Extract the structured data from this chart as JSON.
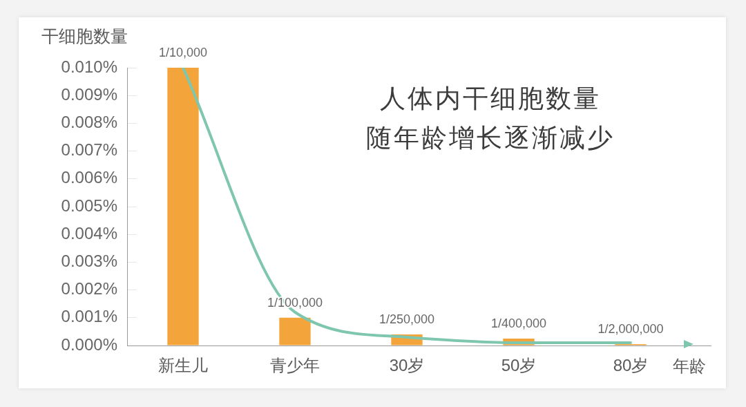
{
  "chart_data": {
    "type": "bar",
    "title": "人体内干细胞数量",
    "subtitle": "随年龄增长逐渐减少",
    "xlabel": "年龄",
    "ylabel": "干细胞数量",
    "categories": [
      "新生儿",
      "青少年",
      "30岁",
      "50岁",
      "80岁"
    ],
    "series": [
      {
        "color": "#f3a53c",
        "values": [
          0.01,
          0.001,
          0.0004,
          0.00025,
          5e-05
        ],
        "value_labels": [
          "1/10,000",
          "1/100,000",
          "1/250,000",
          "1/400,000",
          "1/2,000,000"
        ]
      },
      {
        "type": "line",
        "color": "#7fc6ae",
        "values": [
          0.01,
          0.0012,
          0.0003,
          0.0001,
          0.0001
        ]
      }
    ],
    "ylim": [
      0,
      0.01
    ],
    "yticks": [
      {
        "value": 0,
        "label": "0.000%"
      },
      {
        "value": 0.001,
        "label": "0.001%"
      },
      {
        "value": 0.002,
        "label": "0.002%"
      },
      {
        "value": 0.003,
        "label": "0.003%"
      },
      {
        "value": 0.004,
        "label": "0.004%"
      },
      {
        "value": 0.005,
        "label": "0.005%"
      },
      {
        "value": 0.006,
        "label": "0.006%"
      },
      {
        "value": 0.007,
        "label": "0.007%"
      },
      {
        "value": 0.008,
        "label": "0.008%"
      },
      {
        "value": 0.009,
        "label": "0.009%"
      },
      {
        "value": 0.01,
        "label": "0.010%"
      }
    ],
    "grid": false,
    "legend": false,
    "marker": "none"
  }
}
